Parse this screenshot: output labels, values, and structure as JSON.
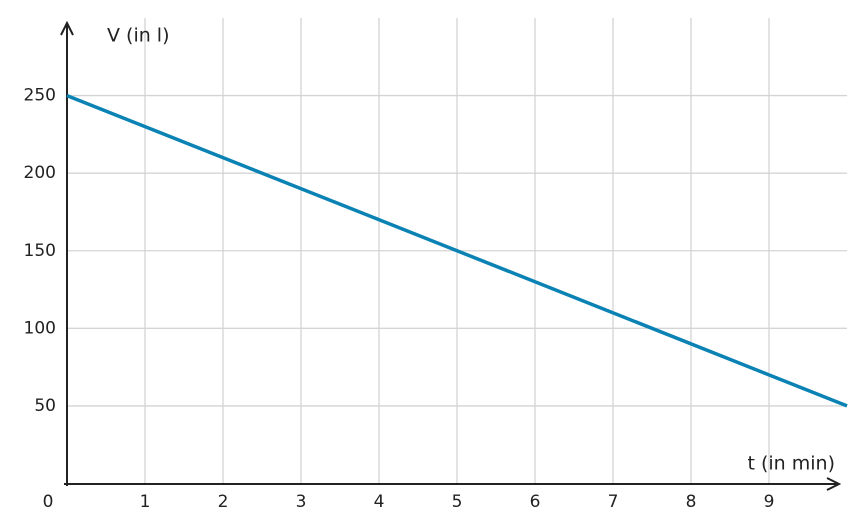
{
  "chart_data": {
    "type": "line",
    "x_label": "t (in min)",
    "y_label": "V (in l)",
    "x": [
      0,
      10
    ],
    "series": [
      {
        "name": "V",
        "color": "#0a82b4",
        "values": [
          250,
          50
        ]
      }
    ],
    "xlim": [
      0,
      10
    ],
    "xticks": [
      0,
      1,
      2,
      3,
      4,
      5,
      6,
      7,
      8,
      9
    ],
    "ylim": [
      0,
      300
    ],
    "yticks": [
      50,
      100,
      150,
      200,
      250
    ],
    "grid": true
  }
}
